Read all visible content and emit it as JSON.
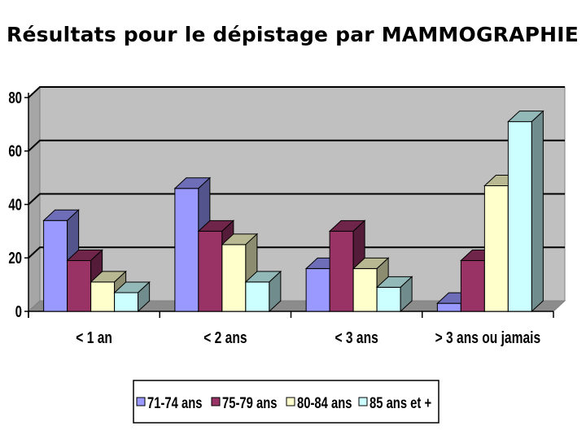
{
  "title": "Résultats pour le dépistage par MAMMOGRAPHIE",
  "chart_data": {
    "type": "bar",
    "style": "3d-clustered-column",
    "title": "Résultats pour le dépistage par MAMMOGRAPHIE",
    "xlabel": "",
    "ylabel": "",
    "ylim": [
      0,
      80
    ],
    "yticks": [
      "0",
      "20",
      "40",
      "60",
      "80"
    ],
    "grid": true,
    "legend_position": "bottom",
    "categories": [
      "< 1 an",
      "< 2 ans",
      "< 3 ans",
      "> 3 ans ou jamais"
    ],
    "series": [
      {
        "name": "71-74 ans",
        "color": "#9999ff",
        "values": [
          34,
          46,
          16,
          3
        ]
      },
      {
        "name": "75-79 ans",
        "color": "#993366",
        "values": [
          19,
          30,
          30,
          19
        ]
      },
      {
        "name": "80-84 ans",
        "color": "#ffffcc",
        "values": [
          11,
          25,
          16,
          47
        ]
      },
      {
        "name": "85 ans et +",
        "color": "#ccffff",
        "values": [
          7,
          11,
          9,
          71
        ]
      }
    ],
    "plot_background": "#c0c0c0"
  }
}
